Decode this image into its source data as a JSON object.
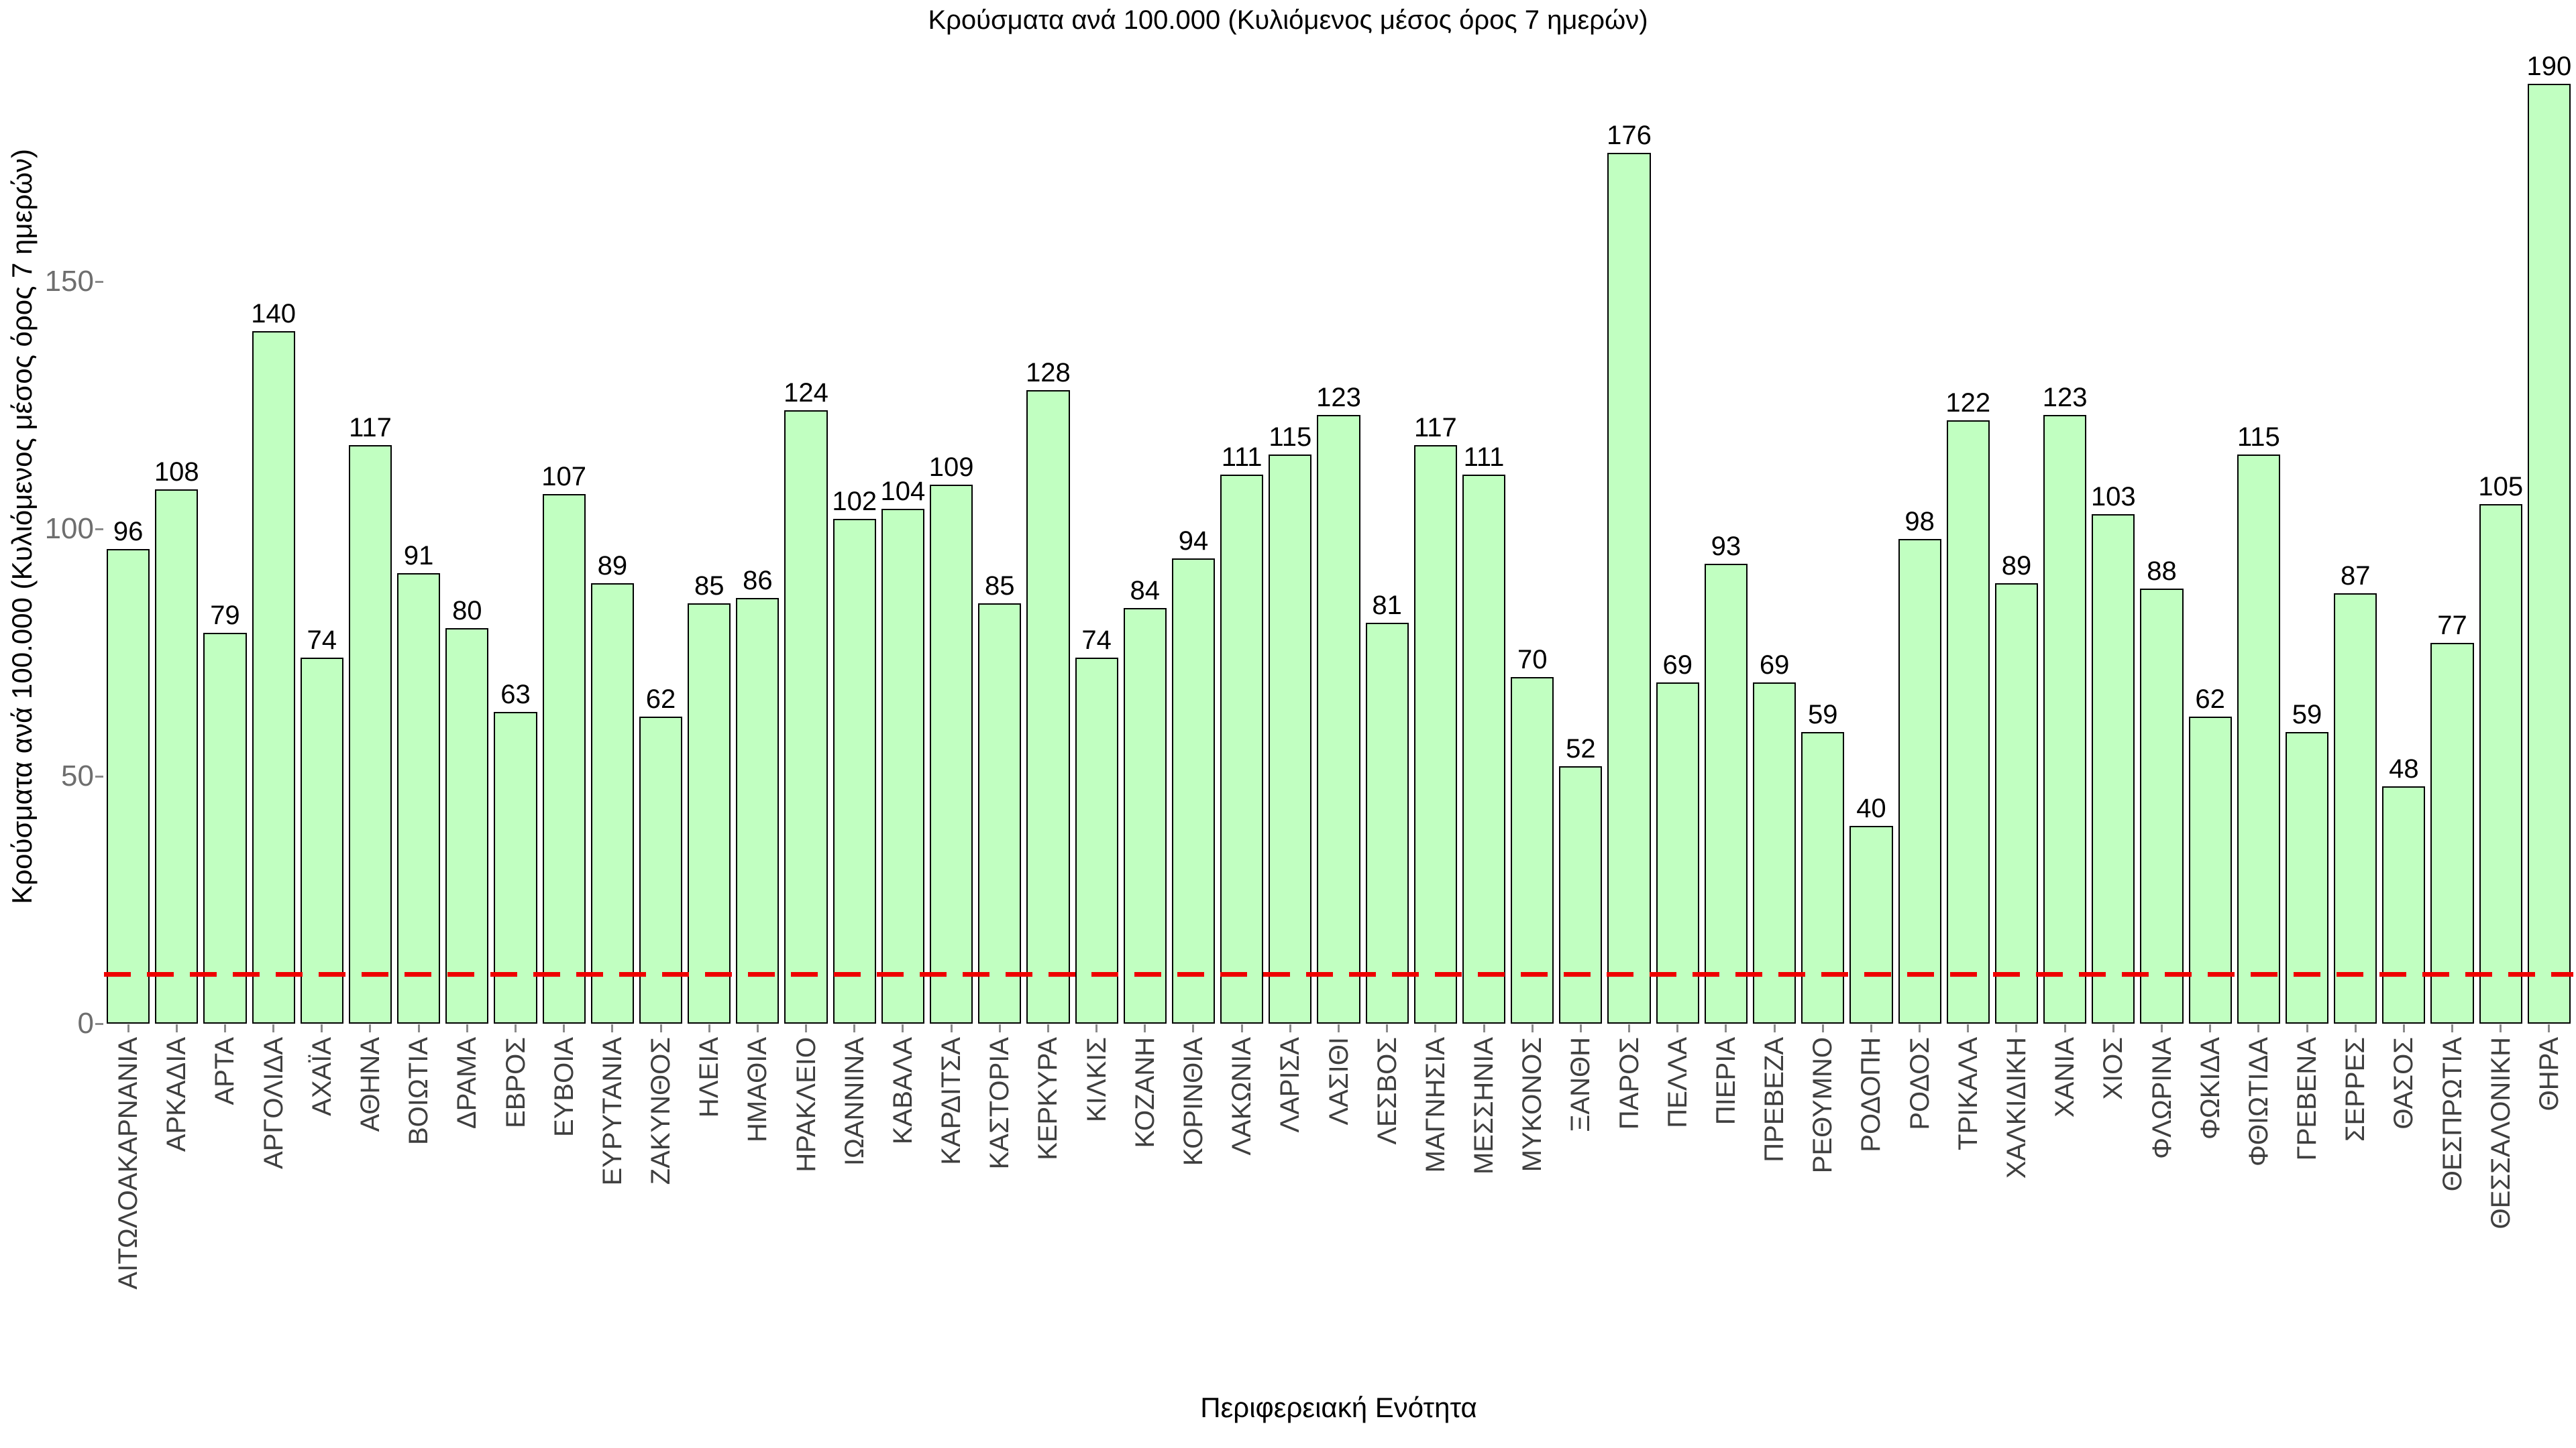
{
  "chart_data": {
    "type": "bar",
    "title": "Κρούσματα ανά 100.000 (Κυλιόμενος μέσος όρος 7 ημερών)",
    "xlabel": "Περιφερειακή Ενότητα",
    "ylabel": "Κρούσματα ανά 100.000 (Κυλιόμενος μέσος όρος 7 ημερών)",
    "ylim": [
      0,
      199
    ],
    "yticks": [
      0,
      50,
      100,
      150
    ],
    "grid": false,
    "legend": null,
    "bar_fill_color": "#c1ffc1",
    "bar_edge_color": "#000000",
    "value_label_color": "#000000",
    "threshold_line": {
      "value": 10,
      "color": "#ee0000",
      "style": "dashed"
    },
    "categories": [
      "ΑΙΤΩΛΟΑΚΑΡΝΑΝΙΑ",
      "ΑΡΚΑΔΙΑ",
      "ΑΡΤΑ",
      "ΑΡΓΟΛΙΔΑ",
      "ΑΧΑΪΑ",
      "ΑΘΗΝΑ",
      "ΒΟΙΩΤΙΑ",
      "ΔΡΑΜΑ",
      "ΕΒΡΟΣ",
      "ΕΥΒΟΙΑ",
      "ΕΥΡΥΤΑΝΙΑ",
      "ΖΑΚΥΝΘΟΣ",
      "ΗΛΕΙΑ",
      "ΗΜΑΘΙΑ",
      "ΗΡΑΚΛΕΙΟ",
      "ΙΩΑΝΝΙΝΑ",
      "ΚΑΒΑΛΑ",
      "ΚΑΡΔΙΤΣΑ",
      "ΚΑΣΤΟΡΙΑ",
      "ΚΕΡΚΥΡΑ",
      "ΚΙΛΚΙΣ",
      "ΚΟΖΑΝΗ",
      "ΚΟΡΙΝΘΙΑ",
      "ΛΑΚΩΝΙΑ",
      "ΛΑΡΙΣΑ",
      "ΛΑΣΙΘΙ",
      "ΛΕΣΒΟΣ",
      "ΜΑΓΝΗΣΙΑ",
      "ΜΕΣΣΗΝΙΑ",
      "ΜΥΚΟΝΟΣ",
      "ΞΑΝΘΗ",
      "ΠΑΡΟΣ",
      "ΠΕΛΛΑ",
      "ΠΙΕΡΙΑ",
      "ΠΡΕΒΕΖΑ",
      "ΡΕΘΥΜΝΟ",
      "ΡΟΔΟΠΗ",
      "ΡΟΔΟΣ",
      "ΤΡΙΚΑΛΑ",
      "ΧΑΛΚΙΔΙΚΗ",
      "ΧΑΝΙΑ",
      "ΧΙΟΣ",
      "ΦΛΩΡΙΝΑ",
      "ΦΩΚΙΔΑ",
      "ΦΘΙΩΤΙΔΑ",
      "ΓΡΕΒΕΝΑ",
      "ΣΕΡΡΕΣ",
      "ΘΑΣΟΣ",
      "ΘΕΣΠΡΩΤΙΑ",
      "ΘΕΣΣΑΛΟΝΙΚΗ",
      "ΘΗΡΑ"
    ],
    "values": [
      96,
      108,
      79,
      140,
      74,
      117,
      91,
      80,
      63,
      107,
      89,
      62,
      85,
      86,
      124,
      102,
      104,
      109,
      85,
      128,
      74,
      84,
      94,
      111,
      115,
      123,
      81,
      117,
      111,
      70,
      52,
      176,
      69,
      93,
      69,
      59,
      40,
      98,
      122,
      89,
      123,
      103,
      88,
      62,
      115,
      59,
      87,
      48,
      77,
      105,
      190
    ]
  }
}
